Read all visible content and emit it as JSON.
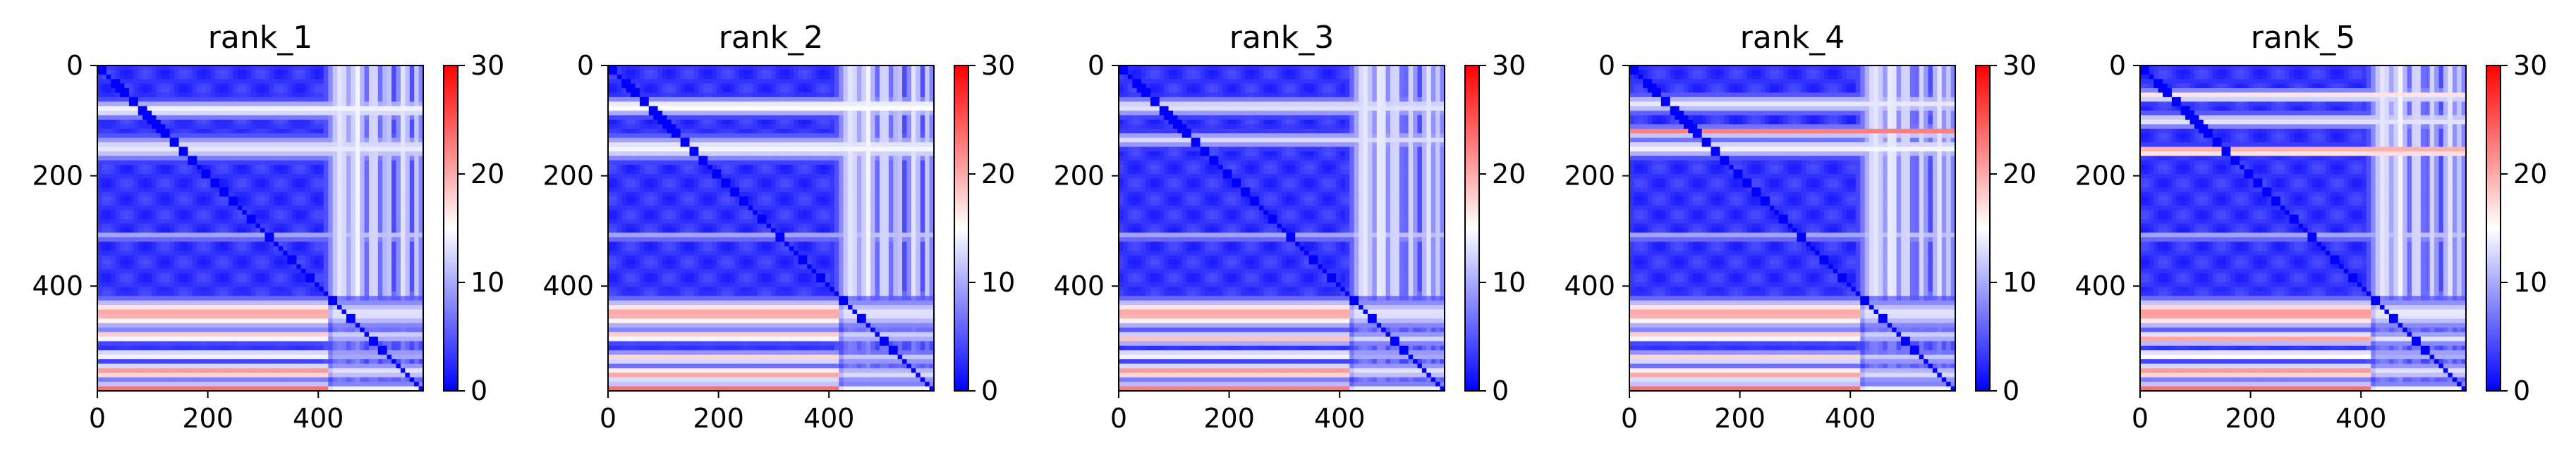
{
  "chart_data": [
    {
      "type": "heatmap",
      "title": "rank_1",
      "xlim": [
        0,
        590
      ],
      "ylim": [
        590,
        0
      ],
      "xticks": [
        0,
        200,
        400
      ],
      "yticks": [
        0,
        200,
        400
      ],
      "colorbar": {
        "ticks": [
          0,
          10,
          20,
          30
        ],
        "range": [
          0,
          30
        ],
        "colormap": [
          "#0000ff",
          "#ffffff",
          "#ff0000"
        ]
      },
      "stripes_rows": [
        [
          80,
          12,
          17
        ],
        [
          150,
          16,
          16
        ],
        [
          310,
          5,
          13
        ],
        [
          450,
          18,
          24
        ],
        [
          490,
          8,
          22
        ],
        [
          525,
          6,
          20
        ],
        [
          555,
          10,
          25
        ],
        [
          585,
          6,
          28
        ]
      ],
      "stripes_cols": [
        [
          440,
          18,
          15
        ],
        [
          470,
          12,
          16
        ],
        [
          500,
          10,
          15
        ],
        [
          525,
          8,
          14
        ],
        [
          555,
          10,
          15
        ],
        [
          580,
          6,
          14
        ]
      ]
    },
    {
      "type": "heatmap",
      "title": "rank_2",
      "xlim": [
        0,
        590
      ],
      "ylim": [
        590,
        0
      ],
      "xticks": [
        0,
        200,
        400
      ],
      "yticks": [
        0,
        200,
        400
      ],
      "colorbar": {
        "ticks": [
          0,
          10,
          20,
          30
        ],
        "range": [
          0,
          30
        ],
        "colormap": [
          "#0000ff",
          "#ffffff",
          "#ff0000"
        ]
      },
      "stripes_rows": [
        [
          75,
          12,
          18
        ],
        [
          150,
          16,
          17
        ],
        [
          310,
          5,
          13
        ],
        [
          450,
          18,
          24
        ],
        [
          490,
          8,
          22
        ],
        [
          530,
          8,
          21
        ],
        [
          560,
          10,
          24
        ],
        [
          585,
          6,
          28
        ]
      ],
      "stripes_cols": [
        [
          440,
          18,
          15
        ],
        [
          470,
          12,
          16
        ],
        [
          500,
          10,
          15
        ],
        [
          525,
          8,
          14
        ],
        [
          555,
          10,
          15
        ],
        [
          580,
          6,
          14
        ]
      ]
    },
    {
      "type": "heatmap",
      "title": "rank_3",
      "xlim": [
        0,
        590
      ],
      "ylim": [
        590,
        0
      ],
      "xticks": [
        0,
        200,
        400
      ],
      "yticks": [
        0,
        200,
        400
      ],
      "colorbar": {
        "ticks": [
          0,
          10,
          20,
          30
        ],
        "range": [
          0,
          30
        ],
        "colormap": [
          "#0000ff",
          "#ffffff",
          "#ff0000"
        ]
      },
      "stripes_rows": [
        [
          75,
          12,
          16
        ],
        [
          135,
          10,
          15
        ],
        [
          310,
          5,
          13
        ],
        [
          450,
          18,
          24
        ],
        [
          495,
          8,
          22
        ],
        [
          525,
          6,
          20
        ],
        [
          555,
          10,
          25
        ],
        [
          585,
          6,
          27
        ]
      ],
      "stripes_cols": [
        [
          445,
          18,
          15
        ],
        [
          475,
          12,
          16
        ],
        [
          500,
          10,
          15
        ],
        [
          530,
          8,
          14
        ],
        [
          560,
          10,
          15
        ],
        [
          580,
          6,
          14
        ]
      ]
    },
    {
      "type": "heatmap",
      "title": "rank_4",
      "xlim": [
        0,
        590
      ],
      "ylim": [
        590,
        0
      ],
      "xticks": [
        0,
        200,
        400
      ],
      "yticks": [
        0,
        200,
        400
      ],
      "colorbar": {
        "ticks": [
          0,
          10,
          20,
          30
        ],
        "range": [
          0,
          30
        ],
        "colormap": [
          "#0000ff",
          "#ffffff",
          "#ff0000"
        ]
      },
      "stripes_rows": [
        [
          70,
          12,
          16
        ],
        [
          120,
          6,
          27
        ],
        [
          150,
          12,
          17
        ],
        [
          310,
          5,
          13
        ],
        [
          450,
          18,
          24
        ],
        [
          490,
          8,
          22
        ],
        [
          530,
          8,
          21
        ],
        [
          560,
          10,
          24
        ],
        [
          585,
          6,
          28
        ]
      ],
      "stripes_cols": [
        [
          445,
          20,
          15
        ],
        [
          475,
          12,
          16
        ],
        [
          500,
          10,
          15
        ],
        [
          530,
          8,
          14
        ],
        [
          560,
          10,
          15
        ],
        [
          580,
          6,
          14
        ]
      ]
    },
    {
      "type": "heatmap",
      "title": "rank_5",
      "xlim": [
        0,
        590
      ],
      "ylim": [
        590,
        0
      ],
      "xticks": [
        0,
        200,
        400
      ],
      "yticks": [
        0,
        200,
        400
      ],
      "colorbar": {
        "ticks": [
          0,
          10,
          20,
          30
        ],
        "range": [
          0,
          30
        ],
        "colormap": [
          "#0000ff",
          "#ffffff",
          "#ff0000"
        ]
      },
      "stripes_rows": [
        [
          55,
          8,
          20
        ],
        [
          100,
          10,
          16
        ],
        [
          155,
          6,
          27
        ],
        [
          310,
          5,
          13
        ],
        [
          450,
          18,
          25
        ],
        [
          495,
          8,
          24
        ],
        [
          525,
          6,
          21
        ],
        [
          555,
          10,
          25
        ],
        [
          585,
          6,
          28
        ]
      ],
      "stripes_cols": [
        [
          440,
          18,
          15
        ],
        [
          470,
          12,
          16
        ],
        [
          500,
          10,
          15
        ],
        [
          530,
          8,
          14
        ],
        [
          560,
          10,
          15
        ],
        [
          580,
          6,
          14
        ]
      ]
    }
  ]
}
